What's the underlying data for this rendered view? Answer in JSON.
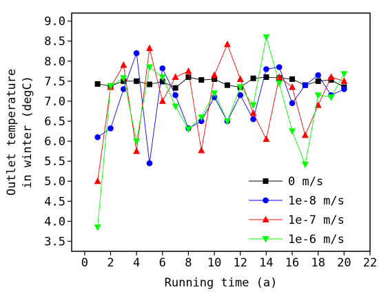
{
  "chart_data": {
    "type": "line",
    "xlabel": "Running time (a)",
    "ylabel_lines": [
      "Outlet temperature",
      "in winter (degC)"
    ],
    "xlim": [
      -1,
      22
    ],
    "ylim": [
      3.25,
      9.2
    ],
    "xticks": [
      0,
      2,
      4,
      6,
      8,
      10,
      12,
      14,
      16,
      18,
      20,
      22
    ],
    "yticks": [
      3.5,
      4.0,
      4.5,
      5.0,
      5.5,
      6.0,
      6.5,
      7.0,
      7.5,
      8.0,
      8.5,
      9.0
    ],
    "ytick_labels": [
      "3.5",
      "4.0",
      "4.5",
      "5.0",
      "5.5",
      "6.0",
      "6.5",
      "7.0",
      "7.5",
      "8.0",
      "8.5",
      "9.0"
    ],
    "grid": false,
    "legend_position": "bottom-right",
    "x": [
      1,
      2,
      3,
      4,
      5,
      6,
      7,
      8,
      9,
      10,
      11,
      12,
      13,
      14,
      15,
      16,
      17,
      18,
      19,
      20
    ],
    "series": [
      {
        "name": "0 m/s",
        "color": "#000000",
        "marker": "square",
        "values": [
          7.43,
          7.38,
          7.5,
          7.5,
          7.42,
          7.49,
          7.33,
          7.6,
          7.53,
          7.55,
          7.4,
          7.35,
          7.57,
          7.6,
          7.58,
          7.55,
          7.4,
          7.5,
          7.53,
          7.35
        ]
      },
      {
        "name": "1e-8 m/s",
        "color": "#0000ff",
        "marker": "circle",
        "values": [
          6.1,
          6.32,
          7.3,
          8.2,
          5.45,
          7.82,
          7.15,
          6.32,
          6.5,
          7.1,
          6.5,
          7.15,
          6.55,
          7.8,
          7.85,
          6.95,
          7.4,
          7.65,
          7.15,
          7.3
        ]
      },
      {
        "name": "1e-7 m/s",
        "color": "#ff0000",
        "marker": "triangle-up",
        "values": [
          5.0,
          7.35,
          7.9,
          5.75,
          8.32,
          7.0,
          7.6,
          7.75,
          5.77,
          7.65,
          8.42,
          7.55,
          6.7,
          6.05,
          7.6,
          7.35,
          6.15,
          6.9,
          7.6,
          7.5
        ]
      },
      {
        "name": "1e-6 m/s",
        "color": "#00ff00",
        "marker": "triangle-down",
        "values": [
          3.85,
          7.38,
          7.58,
          6.0,
          7.85,
          7.6,
          6.87,
          6.3,
          6.6,
          7.2,
          6.5,
          7.35,
          6.9,
          8.6,
          7.45,
          6.25,
          5.42,
          7.15,
          7.1,
          7.68
        ]
      }
    ]
  }
}
